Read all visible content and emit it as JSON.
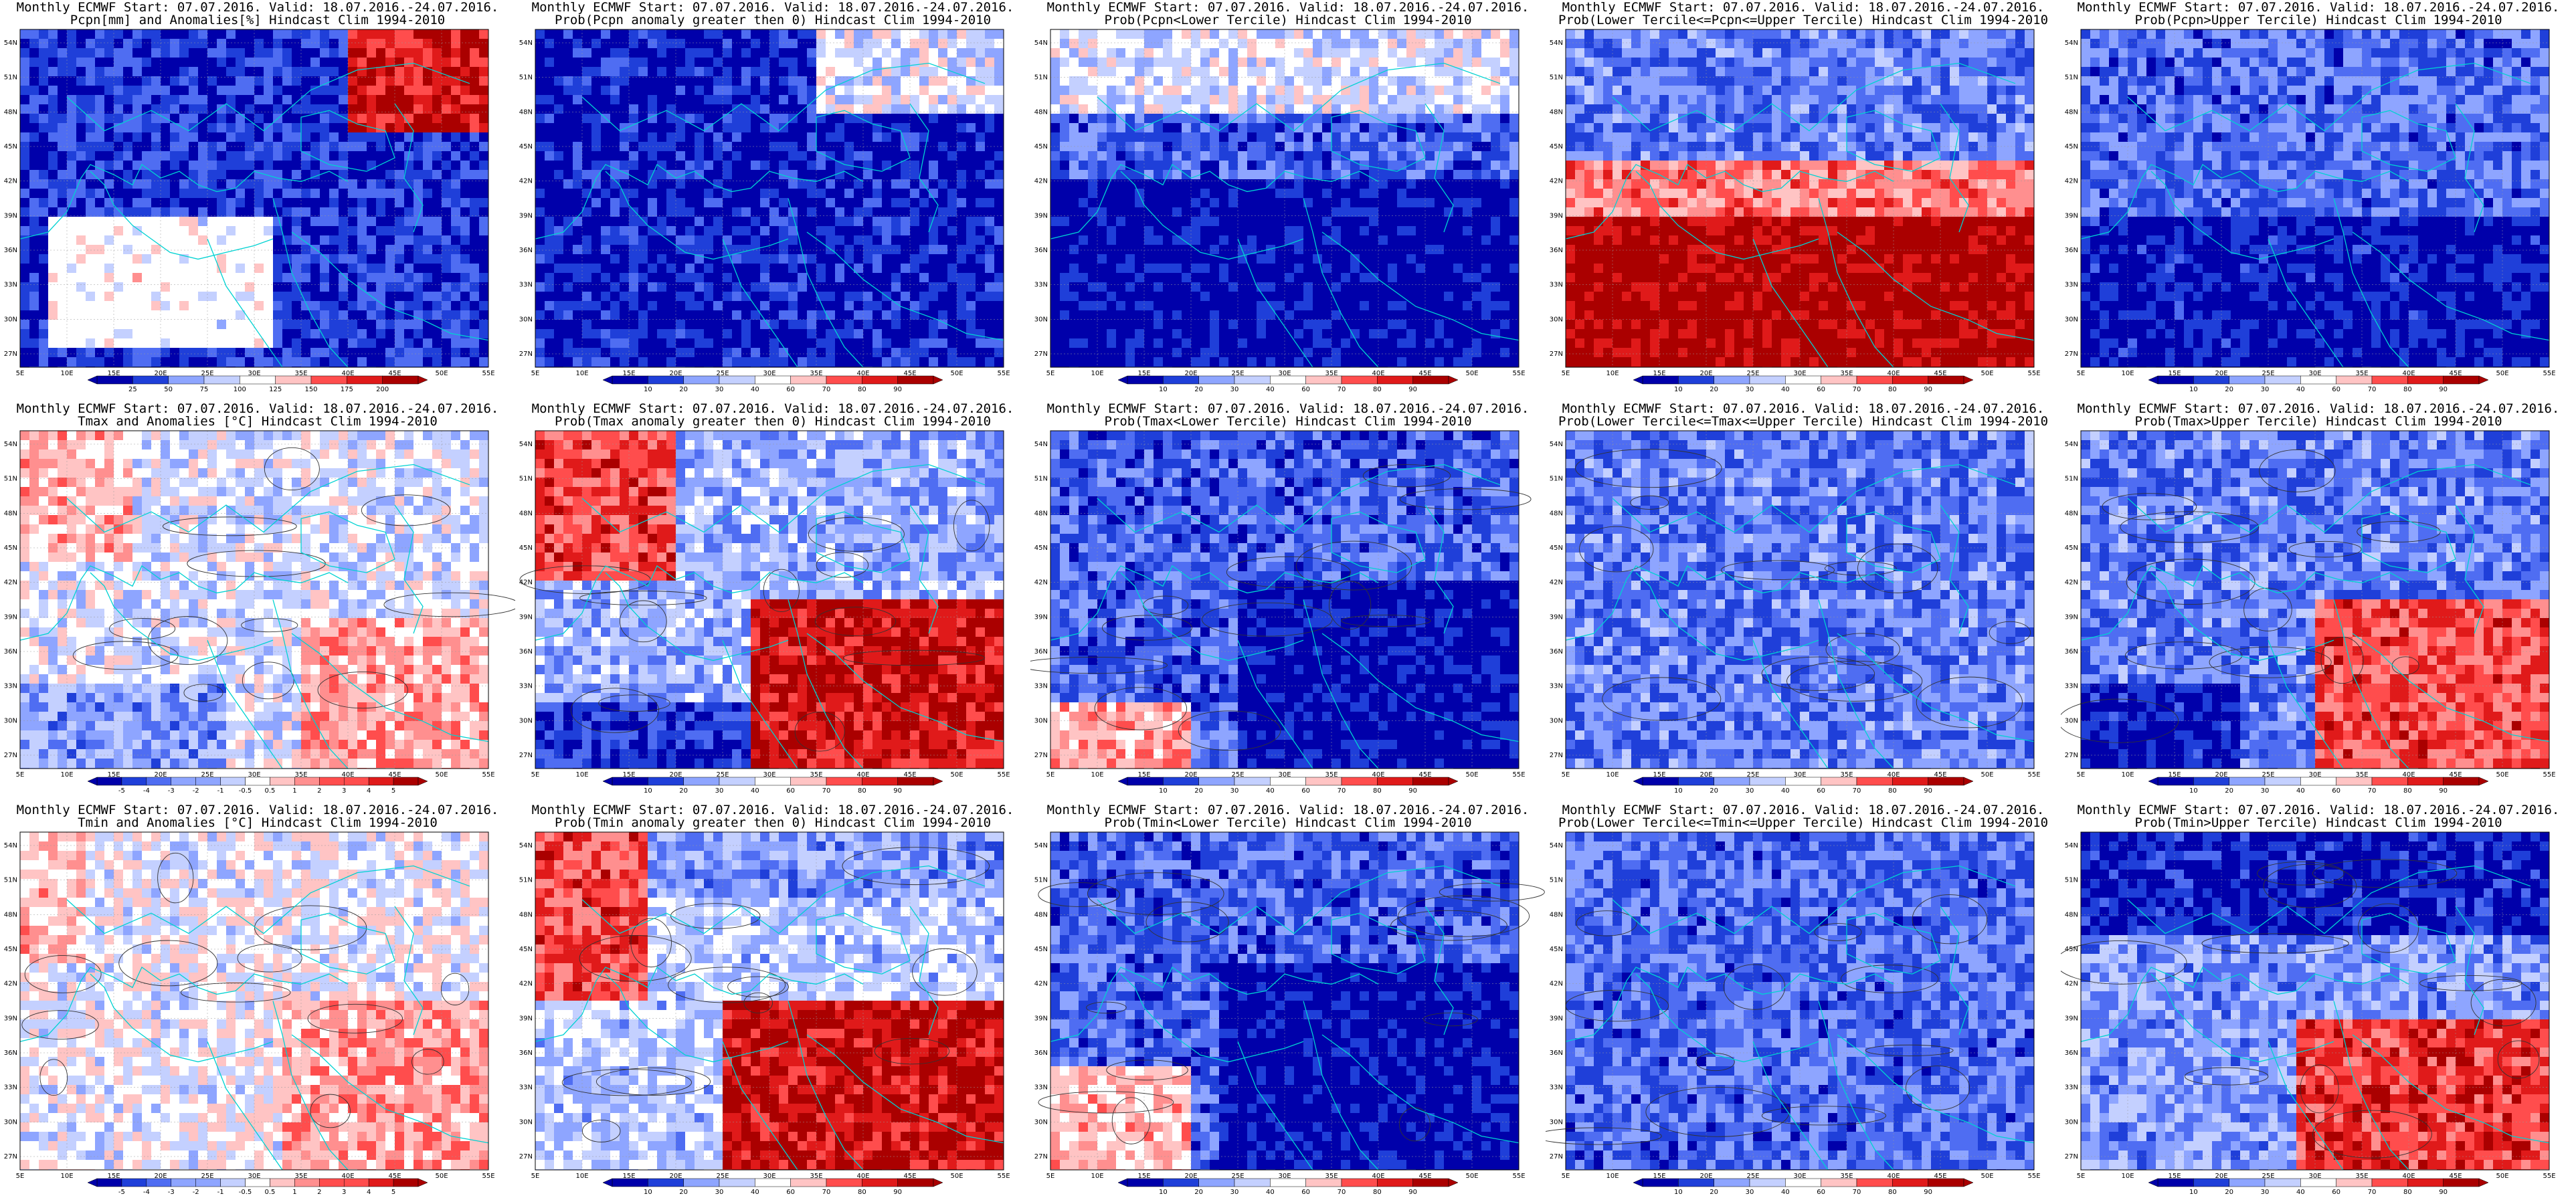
{
  "colors": {
    "deep_blue": "#0000aa",
    "blue": "#1f3fd9",
    "mid_blue": "#4f6df2",
    "light_blue": "#8ea5ff",
    "pale_blue": "#c4d0ff",
    "white": "#ffffff",
    "pale_red": "#ffc4c4",
    "light_red": "#ff8f8f",
    "red": "#ff4d4d",
    "mid_red": "#e01a1a",
    "dark_red": "#aa0000",
    "coast": "#00d2d2",
    "contour": "#333333"
  },
  "axes": {
    "lat_labels": [
      "54N",
      "51N",
      "48N",
      "45N",
      "42N",
      "39N",
      "36N",
      "33N",
      "30N",
      "27N"
    ],
    "lon_labels": [
      "5E",
      "10E",
      "15E",
      "20E",
      "25E",
      "30E",
      "35E",
      "40E",
      "45E",
      "50E",
      "55E"
    ]
  },
  "colorbars": {
    "anom_pcpn": [
      "25",
      "50",
      "75",
      "100",
      "125",
      "150",
      "175",
      "200"
    ],
    "prob": [
      "10",
      "20",
      "30",
      "40",
      "60",
      "70",
      "80",
      "90"
    ],
    "anom_temp": [
      "-5",
      "-4",
      "-3",
      "-2",
      "-1",
      "-0.5",
      "0.5",
      "1",
      "2",
      "3",
      "4",
      "5"
    ]
  },
  "panels": [
    {
      "row": 0,
      "col": 0,
      "title_line1": "Monthly ECMWF Start: 07.07.2016. Valid: 18.07.2016.-24.07.2016.",
      "title_line2": "Pcpn[mm] and Anomalies[%] Hindcast Clim 1994-2010",
      "colorbar": "anom_pcpn",
      "pattern": "pcpn_anom",
      "contours": false
    },
    {
      "row": 0,
      "col": 1,
      "title_line1": "Monthly ECMWF Start: 07.07.2016. Valid: 18.07.2016.-24.07.2016.",
      "title_line2": "Prob(Pcpn anomaly greater then 0) Hindcast Clim 1994-2010",
      "colorbar": "prob",
      "pattern": "pcpn_gt0",
      "contours": false
    },
    {
      "row": 0,
      "col": 2,
      "title_line1": "Monthly ECMWF Start: 07.07.2016. Valid: 18.07.2016.-24.07.2016.",
      "title_line2": "Prob(Pcpn<Lower Tercile) Hindcast Clim 1994-2010",
      "colorbar": "prob",
      "pattern": "pcpn_lower",
      "contours": false
    },
    {
      "row": 0,
      "col": 3,
      "title_line1": "Monthly ECMWF Start: 07.07.2016. Valid: 18.07.2016.-24.07.2016.",
      "title_line2": "Prob(Lower Tercile<=Pcpn<=Upper Tercile) Hindcast Clim 1994-2010",
      "colorbar": "prob",
      "pattern": "pcpn_mid",
      "contours": false
    },
    {
      "row": 0,
      "col": 4,
      "title_line1": "Monthly ECMWF Start: 07.07.2016. Valid: 18.07.2016.-24.07.2016.",
      "title_line2": "Prob(Pcpn>Upper Tercile) Hindcast Clim 1994-2010",
      "colorbar": "prob",
      "pattern": "pcpn_upper",
      "contours": false
    },
    {
      "row": 1,
      "col": 0,
      "title_line1": "Monthly ECMWF Start: 07.07.2016. Valid: 18.07.2016.-24.07.2016.",
      "title_line2": "Tmax and Anomalies [°C] Hindcast Clim 1994-2010",
      "colorbar": "anom_temp",
      "pattern": "tmax_anom",
      "contours": true
    },
    {
      "row": 1,
      "col": 1,
      "title_line1": "Monthly ECMWF Start: 07.07.2016. Valid: 18.07.2016.-24.07.2016.",
      "title_line2": "Prob(Tmax anomaly greater then 0) Hindcast Clim 1994-2010",
      "colorbar": "prob",
      "pattern": "tmax_gt0",
      "contours": true
    },
    {
      "row": 1,
      "col": 2,
      "title_line1": "Monthly ECMWF Start: 07.07.2016. Valid: 18.07.2016.-24.07.2016.",
      "title_line2": "Prob(Tmax<Lower Tercile) Hindcast Clim 1994-2010",
      "colorbar": "prob",
      "pattern": "tmax_lower",
      "contours": true
    },
    {
      "row": 1,
      "col": 3,
      "title_line1": "Monthly ECMWF Start: 07.07.2016. Valid: 18.07.2016.-24.07.2016.",
      "title_line2": "Prob(Lower Tercile<=Tmax<=Upper Tercile) Hindcast Clim 1994-2010",
      "colorbar": "prob",
      "pattern": "tmax_mid",
      "contours": true
    },
    {
      "row": 1,
      "col": 4,
      "title_line1": "Monthly ECMWF Start: 07.07.2016. Valid: 18.07.2016.-24.07.2016.",
      "title_line2": "Prob(Tmax>Upper Tercile) Hindcast Clim 1994-2010",
      "colorbar": "prob",
      "pattern": "tmax_upper",
      "contours": true
    },
    {
      "row": 2,
      "col": 0,
      "title_line1": "Monthly ECMWF Start: 07.07.2016. Valid: 18.07.2016.-24.07.2016.",
      "title_line2": "Tmin and Anomalies [°C] Hindcast Clim 1994-2010",
      "colorbar": "anom_temp",
      "pattern": "tmin_anom",
      "contours": true
    },
    {
      "row": 2,
      "col": 1,
      "title_line1": "Monthly ECMWF Start: 07.07.2016. Valid: 18.07.2016.-24.07.2016.",
      "title_line2": "Prob(Tmin anomaly greater then 0) Hindcast Clim 1994-2010",
      "colorbar": "prob",
      "pattern": "tmin_gt0",
      "contours": true
    },
    {
      "row": 2,
      "col": 2,
      "title_line1": "Monthly ECMWF Start: 07.07.2016. Valid: 18.07.2016.-24.07.2016.",
      "title_line2": "Prob(Tmin<Lower Tercile) Hindcast Clim 1994-2010",
      "colorbar": "prob",
      "pattern": "tmin_lower",
      "contours": true
    },
    {
      "row": 2,
      "col": 3,
      "title_line1": "Monthly ECMWF Start: 07.07.2016. Valid: 18.07.2016.-24.07.2016.",
      "title_line2": "Prob(Lower Tercile<=Tmin<=Upper Tercile) Hindcast Clim 1994-2010",
      "colorbar": "prob",
      "pattern": "tmin_mid",
      "contours": true
    },
    {
      "row": 2,
      "col": 4,
      "title_line1": "Monthly ECMWF Start: 07.07.2016. Valid: 18.07.2016.-24.07.2016.",
      "title_line2": "Prob(Tmin>Upper Tercile) Hindcast Clim 1994-2010",
      "colorbar": "prob",
      "pattern": "tmin_upper",
      "contours": true
    }
  ]
}
